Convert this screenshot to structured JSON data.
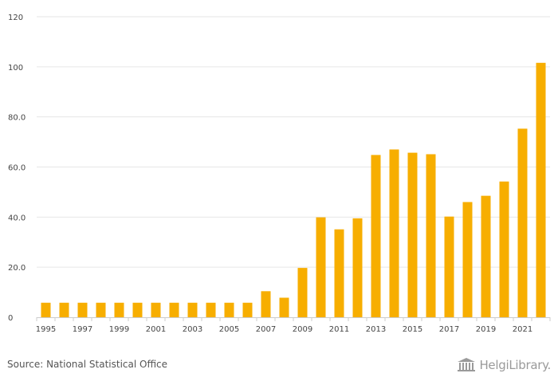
{
  "chart_data": {
    "type": "bar",
    "categories": [
      "1995",
      "1996",
      "1997",
      "1998",
      "1999",
      "2000",
      "2001",
      "2002",
      "2003",
      "2004",
      "2005",
      "2006",
      "2007",
      "2008",
      "2009",
      "2010",
      "2011",
      "2012",
      "2013",
      "2014",
      "2015",
      "2016",
      "2017",
      "2018",
      "2019",
      "2020",
      "2021",
      "2022"
    ],
    "x_tick_labels": [
      "1995",
      "1997",
      "1999",
      "2001",
      "2003",
      "2005",
      "2007",
      "2009",
      "2011",
      "2013",
      "2015",
      "2017",
      "2019",
      "2021"
    ],
    "values": [
      5.8,
      5.8,
      5.8,
      5.8,
      5.8,
      5.8,
      5.8,
      5.8,
      5.8,
      5.8,
      5.8,
      5.8,
      10.4,
      7.8,
      19.7,
      39.9,
      35.1,
      39.5,
      64.8,
      67.0,
      65.7,
      65.1,
      40.2,
      46.0,
      48.5,
      54.2,
      75.3,
      101.6
    ],
    "y_ticks": [
      0,
      20,
      40,
      60,
      80,
      100,
      120
    ],
    "y_tick_labels": [
      "0",
      "20.0",
      "40.0",
      "60.0",
      "80.0",
      "100",
      "120"
    ],
    "ylim": [
      0,
      120
    ],
    "title": "",
    "xlabel": "",
    "ylabel": "",
    "grid": true,
    "bar_color": "#f7ae00",
    "grid_color": "#e6e6e6"
  },
  "footer": {
    "source": "Source: National Statistical Office",
    "logo_text": "HelgiLibrary."
  }
}
